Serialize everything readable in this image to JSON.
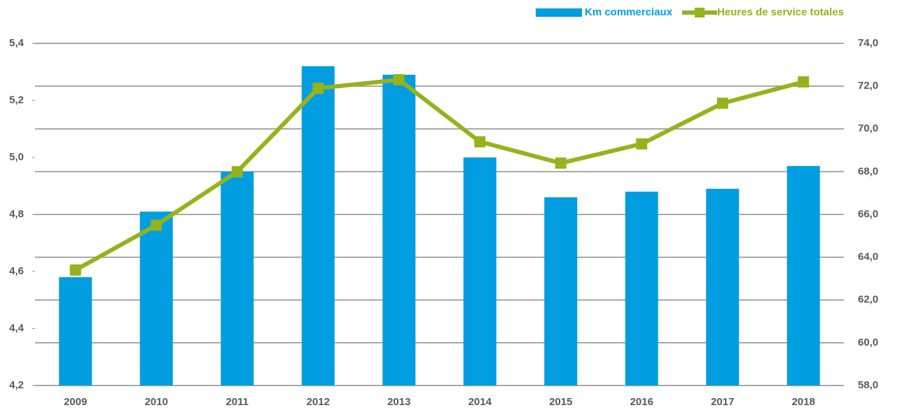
{
  "chart_data": {
    "type": "bar-line",
    "categories": [
      "2009",
      "2010",
      "2011",
      "2012",
      "2013",
      "2014",
      "2015",
      "2016",
      "2017",
      "2018"
    ],
    "series": [
      {
        "name": "Km commerciaux",
        "type": "bar",
        "color": "#009ee0",
        "values": [
          4.58,
          4.81,
          4.95,
          5.32,
          5.29,
          5.0,
          4.86,
          4.88,
          4.89,
          4.97
        ]
      },
      {
        "name": "Heures de service totales",
        "type": "line",
        "axis": "y2",
        "color": "#95b31c",
        "values": [
          63.4,
          65.5,
          68.0,
          71.9,
          72.3,
          69.4,
          68.4,
          69.3,
          71.2,
          72.2
        ]
      }
    ],
    "ylim": [
      4.2,
      5.4
    ],
    "yticks": [
      {
        "value": 4.2,
        "label": "4,2"
      },
      {
        "value": 4.4,
        "label": "4,4"
      },
      {
        "value": 4.6,
        "label": "4,6"
      },
      {
        "value": 4.8,
        "label": "4,8"
      },
      {
        "value": 5.0,
        "label": "5,0"
      },
      {
        "value": 5.2,
        "label": "5,2"
      },
      {
        "value": 5.4,
        "label": "5,4"
      }
    ],
    "y2lim": [
      58.0,
      74.0
    ],
    "y2ticks": [
      {
        "value": 58,
        "label": "58,0"
      },
      {
        "value": 60,
        "label": "60,0"
      },
      {
        "value": 62,
        "label": "62,0"
      },
      {
        "value": 64,
        "label": "64,0"
      },
      {
        "value": 66,
        "label": "66,0"
      },
      {
        "value": 68,
        "label": "68,0"
      },
      {
        "value": 70,
        "label": "70,0"
      },
      {
        "value": 72,
        "label": "72,0"
      },
      {
        "value": 74,
        "label": "74,0"
      }
    ],
    "grid": true,
    "legend": "top-right"
  }
}
